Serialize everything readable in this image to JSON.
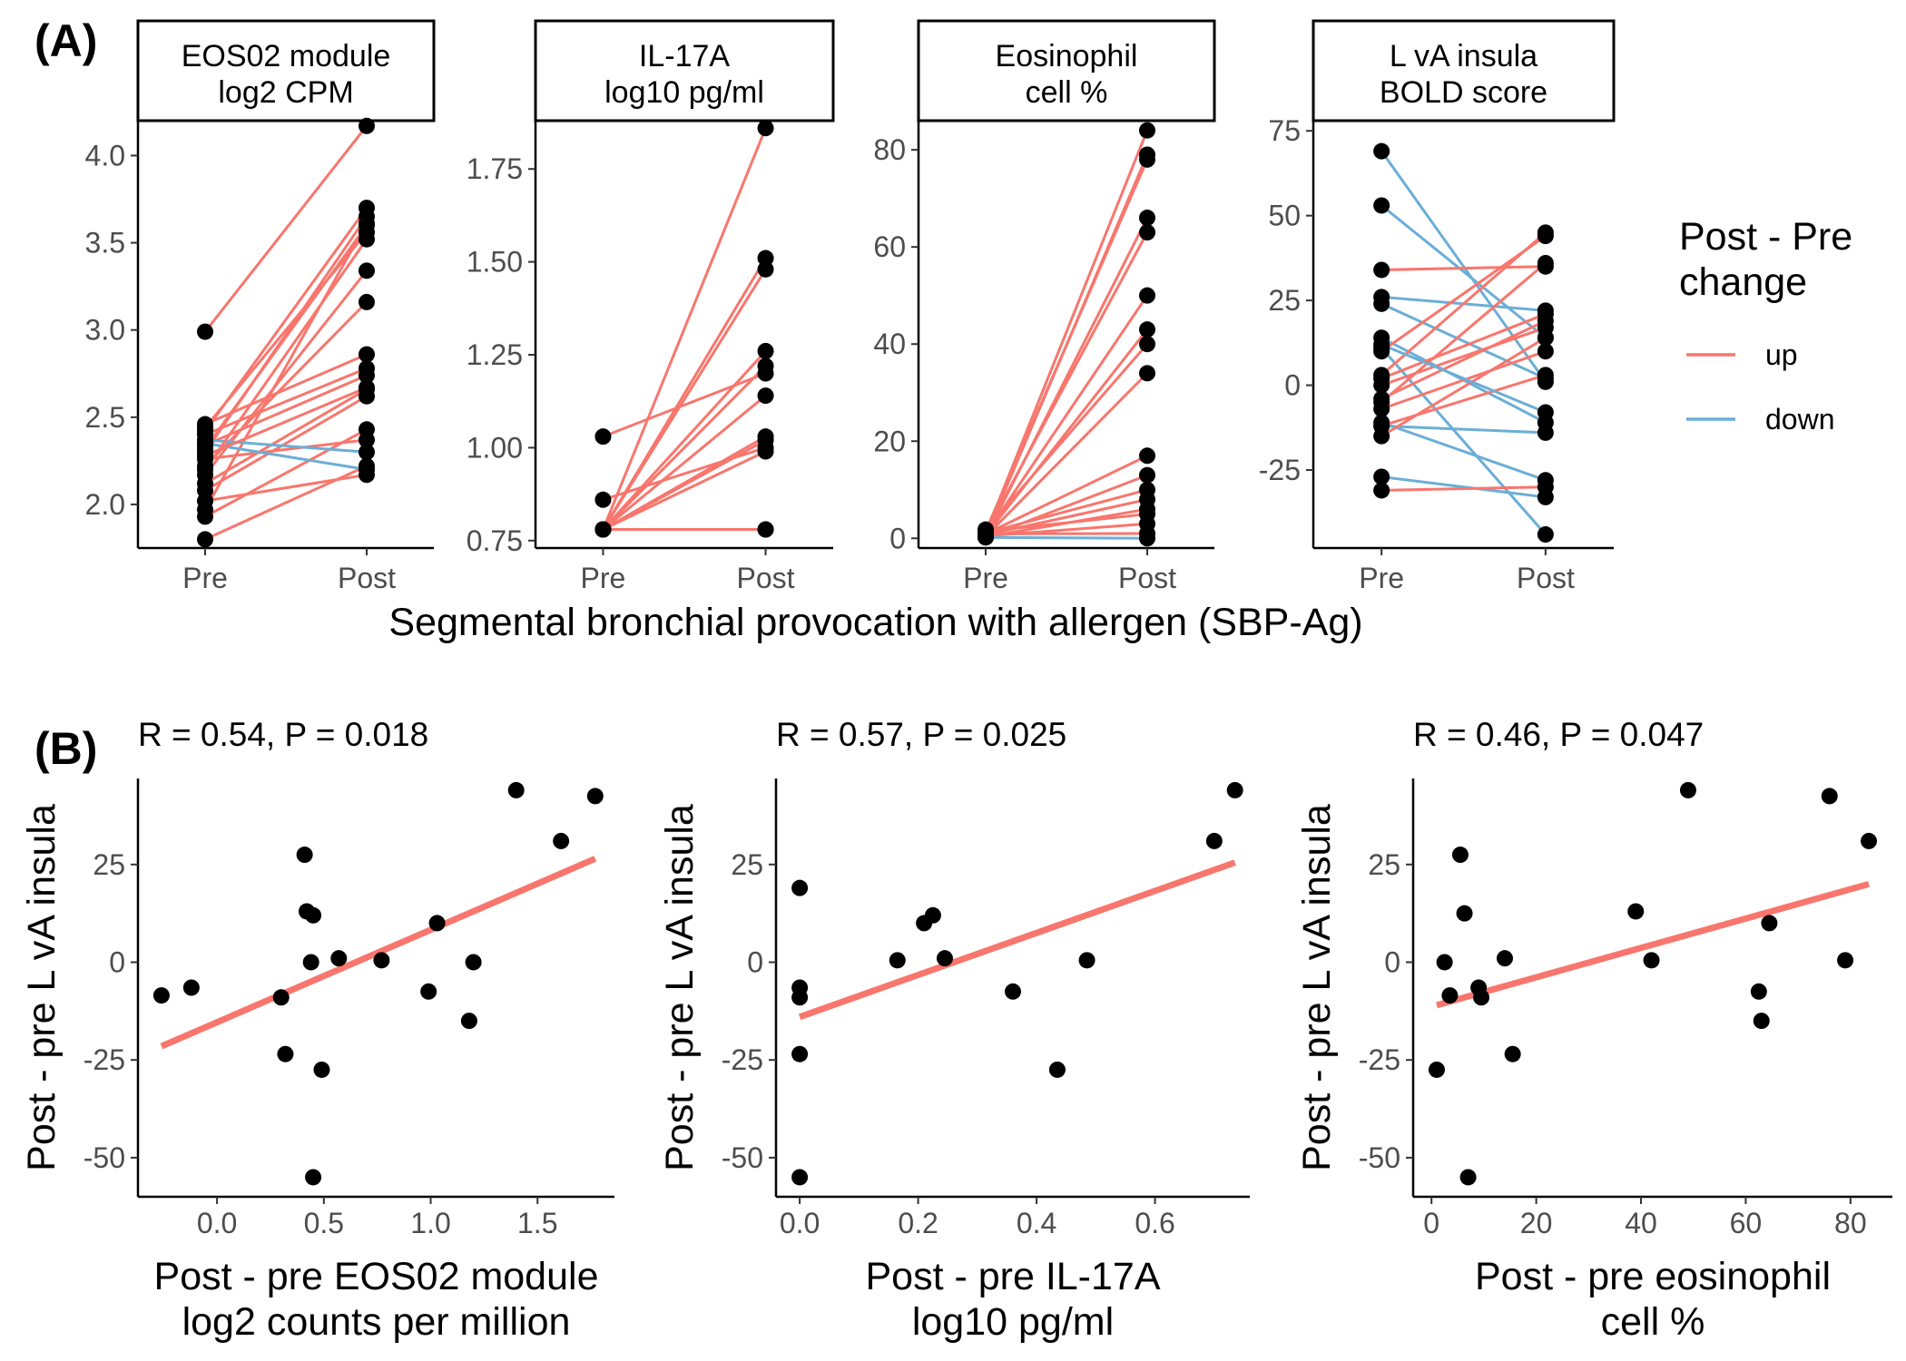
{
  "panel_labels": {
    "a": "(A)",
    "b": "(B)"
  },
  "colors": {
    "up": "#F8766D",
    "down": "#6BAED6",
    "point": "#000000",
    "fit": "#F8766D"
  },
  "legend": {
    "title_line1": "Post - Pre",
    "title_line2": "change",
    "items": [
      {
        "label": "up",
        "color": "#F8766D"
      },
      {
        "label": "down",
        "color": "#6BAED6"
      }
    ]
  },
  "panel_a_xlabel": "Segmental bronchial provocation with allergen (SBP-Ag)",
  "chart_data": [
    {
      "type": "line",
      "facet_title": [
        "EOS02 module",
        "log2 CPM"
      ],
      "categories": [
        "Pre",
        "Post"
      ],
      "ylim": [
        1.75,
        4.2
      ],
      "yticks": [
        2.0,
        2.5,
        3.0,
        3.5,
        4.0
      ],
      "ytick_labels": [
        "2.0",
        "2.5",
        "3.0",
        "3.5",
        "4.0"
      ],
      "pairs": [
        [
          2.99,
          4.17
        ],
        [
          1.8,
          2.22
        ],
        [
          1.93,
          2.43
        ],
        [
          1.97,
          3.61
        ],
        [
          2.02,
          2.17
        ],
        [
          2.08,
          2.62
        ],
        [
          2.12,
          2.66
        ],
        [
          2.17,
          3.34
        ],
        [
          2.22,
          3.16
        ],
        [
          2.26,
          2.37
        ],
        [
          2.3,
          3.65
        ],
        [
          2.34,
          2.74
        ],
        [
          2.37,
          2.3
        ],
        [
          2.42,
          3.7
        ],
        [
          2.46,
          2.86
        ],
        [
          2.44,
          3.56
        ],
        [
          2.4,
          2.78
        ],
        [
          2.35,
          2.2
        ],
        [
          2.28,
          2.67
        ],
        [
          2.2,
          3.52
        ],
        [
          2.32,
          3.6
        ]
      ]
    },
    {
      "type": "line",
      "facet_title": [
        "IL-17A",
        "log10 pg/ml"
      ],
      "categories": [
        "Pre",
        "Post"
      ],
      "ylim": [
        0.73,
        1.88
      ],
      "yticks": [
        0.75,
        1.0,
        1.25,
        1.5,
        1.75
      ],
      "ytick_labels": [
        "0.75",
        "1.00",
        "1.25",
        "1.50",
        "1.75"
      ],
      "pairs": [
        [
          1.03,
          1.2
        ],
        [
          0.86,
          1.0
        ],
        [
          0.78,
          0.78
        ],
        [
          0.78,
          1.86
        ],
        [
          0.78,
          1.51
        ],
        [
          0.78,
          1.48
        ],
        [
          0.78,
          1.26
        ],
        [
          0.78,
          1.22
        ],
        [
          0.78,
          1.14
        ],
        [
          0.78,
          1.03
        ],
        [
          0.78,
          1.02
        ],
        [
          0.78,
          0.99
        ],
        [
          0.78,
          0.78
        ]
      ]
    },
    {
      "type": "line",
      "facet_title": [
        "Eosinophil",
        "cell %"
      ],
      "categories": [
        "Pre",
        "Post"
      ],
      "ylim": [
        -2,
        86
      ],
      "yticks": [
        0,
        20,
        40,
        60,
        80
      ],
      "ytick_labels": [
        "0",
        "20",
        "40",
        "60",
        "80"
      ],
      "pairs": [
        [
          1.0,
          84
        ],
        [
          0.5,
          79
        ],
        [
          1.5,
          78
        ],
        [
          0.3,
          66
        ],
        [
          1.2,
          63
        ],
        [
          0.8,
          50
        ],
        [
          0.6,
          43
        ],
        [
          1.8,
          40
        ],
        [
          0.4,
          34
        ],
        [
          0.9,
          17
        ],
        [
          0.2,
          13
        ],
        [
          1.1,
          10
        ],
        [
          0.7,
          8
        ],
        [
          0.3,
          6
        ],
        [
          1.4,
          5
        ],
        [
          0.5,
          3
        ],
        [
          0.9,
          1
        ],
        [
          0.2,
          0
        ]
      ]
    },
    {
      "type": "line",
      "facet_title": [
        "L vA insula",
        "BOLD score"
      ],
      "categories": [
        "Pre",
        "Post"
      ],
      "ylim": [
        -48,
        78
      ],
      "yticks": [
        -25,
        0,
        25,
        50,
        75
      ],
      "ytick_labels": [
        "-25",
        "0",
        "25",
        "50",
        "75"
      ],
      "pairs": [
        [
          69,
          1
        ],
        [
          53,
          14
        ],
        [
          34,
          35
        ],
        [
          26,
          22
        ],
        [
          24,
          2
        ],
        [
          14,
          -11
        ],
        [
          11,
          -44
        ],
        [
          10,
          44
        ],
        [
          3,
          45
        ],
        [
          2,
          21
        ],
        [
          0,
          17
        ],
        [
          -5,
          36
        ],
        [
          -7,
          10
        ],
        [
          -11,
          -28
        ],
        [
          -12,
          -14
        ],
        [
          -12,
          3
        ],
        [
          -15,
          14
        ],
        [
          -27,
          -33
        ],
        [
          -31,
          -30
        ],
        [
          -4,
          19
        ],
        [
          12,
          -8
        ]
      ]
    },
    {
      "type": "scatter",
      "stat_text": "R = 0.54, P = 0.018",
      "xlabel": [
        "Post - pre EOS02 module",
        "log2 counts per million"
      ],
      "ylabel": "Post - pre L vA insula",
      "xlim": [
        -0.37,
        1.86
      ],
      "ylim": [
        -60,
        47
      ],
      "xticks": [
        0.0,
        0.5,
        1.0,
        1.5
      ],
      "xtick_labels": [
        "0.0",
        "0.5",
        "1.0",
        "1.5"
      ],
      "yticks": [
        -50,
        -25,
        0,
        25
      ],
      "ytick_labels": [
        "-50",
        "-25",
        "0",
        "25"
      ],
      "x": [
        -0.26,
        -0.12,
        0.3,
        0.32,
        0.41,
        0.42,
        0.45,
        0.44,
        0.49,
        0.45,
        0.57,
        0.77,
        0.99,
        1.03,
        1.18,
        1.2,
        1.4,
        1.61,
        1.77
      ],
      "y": [
        -8.5,
        -6.5,
        -9,
        -23.5,
        27.5,
        13,
        12,
        0,
        -27.5,
        -55,
        1,
        0.5,
        -7.5,
        10,
        -15,
        0,
        44,
        31,
        42.5
      ],
      "fit": {
        "x": [
          -0.26,
          1.77
        ],
        "y": [
          -21.5,
          26.5
        ]
      }
    },
    {
      "type": "scatter",
      "stat_text": "R = 0.57, P = 0.025",
      "xlabel": [
        "Post - pre IL-17A",
        "log10 pg/ml"
      ],
      "ylabel": "Post - pre L vA insula",
      "xlim": [
        -0.04,
        0.76
      ],
      "ylim": [
        -60,
        47
      ],
      "xticks": [
        0.0,
        0.2,
        0.4,
        0.6
      ],
      "xtick_labels": [
        "0.0",
        "0.2",
        "0.4",
        "0.6"
      ],
      "yticks": [
        -50,
        -25,
        0,
        25
      ],
      "ytick_labels": [
        "-50",
        "-25",
        "0",
        "25"
      ],
      "x": [
        0.0,
        0.0,
        0.0,
        0.0,
        0.0,
        0.165,
        0.21,
        0.225,
        0.245,
        0.36,
        0.435,
        0.485,
        0.7,
        0.735
      ],
      "y": [
        19,
        -6.5,
        -9,
        -23.5,
        -55,
        0.5,
        10,
        12,
        1,
        -7.5,
        -27.5,
        0.5,
        31,
        44
      ],
      "fit": {
        "x": [
          0.0,
          0.735
        ],
        "y": [
          -14,
          25.5
        ]
      }
    },
    {
      "type": "scatter",
      "stat_text": "R = 0.46, P = 0.047",
      "xlabel": [
        "Post - pre eosinophil",
        "cell %"
      ],
      "ylabel": "Post - pre L vA insula",
      "xlim": [
        -3.5,
        88
      ],
      "ylim": [
        -60,
        47
      ],
      "xticks": [
        0,
        20,
        40,
        60,
        80
      ],
      "xtick_labels": [
        "0",
        "20",
        "40",
        "60",
        "80"
      ],
      "yticks": [
        -50,
        -25,
        0,
        25
      ],
      "ytick_labels": [
        "-50",
        "-25",
        "0",
        "25"
      ],
      "x": [
        1,
        2.5,
        3.5,
        5.5,
        6.3,
        7,
        9,
        9.5,
        14,
        15.5,
        39,
        42,
        49,
        62.5,
        63,
        64.5,
        76,
        79,
        83.5
      ],
      "y": [
        -27.5,
        0,
        -8.5,
        27.5,
        12.5,
        -55,
        -6.5,
        -9,
        1,
        -23.5,
        13,
        0.5,
        44,
        -7.5,
        -15,
        10,
        42.5,
        0.5,
        31
      ],
      "fit": {
        "x": [
          1,
          83.5
        ],
        "y": [
          -11,
          20
        ]
      }
    }
  ]
}
